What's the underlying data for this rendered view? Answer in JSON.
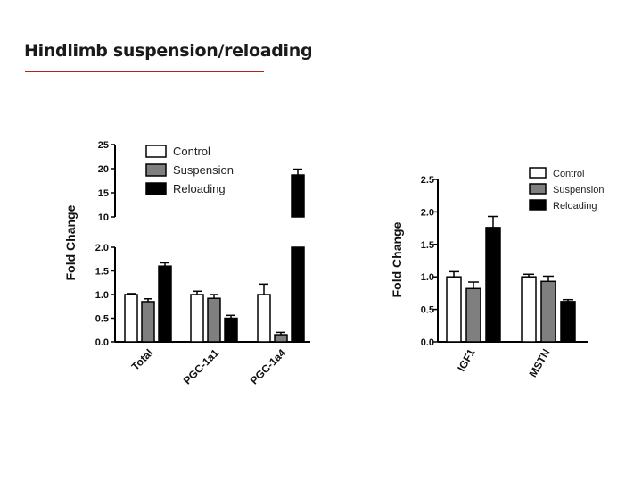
{
  "slide": {
    "title": "Hindlimb suspension/reloading"
  },
  "colors": {
    "control": "#ffffff",
    "suspension": "#7f7f7f",
    "reloading": "#000000",
    "title_underline": "#b22222"
  },
  "chart_data": [
    {
      "type": "bar",
      "ylabel": "Fold Change",
      "categories": [
        "Total",
        "PGC-1a1",
        "PGC-1a4"
      ],
      "series": [
        {
          "name": "Control",
          "values": [
            1.0,
            1.0,
            1.0
          ],
          "errors": [
            0.02,
            0.07,
            0.22
          ]
        },
        {
          "name": "Suspension",
          "values": [
            0.85,
            0.92,
            0.15
          ],
          "errors": [
            0.06,
            0.08,
            0.05
          ]
        },
        {
          "name": "Reloading",
          "values": [
            1.6,
            0.5,
            18.7
          ],
          "errors": [
            0.07,
            0.06,
            1.2
          ]
        }
      ],
      "axis_break": {
        "lower_range": [
          0,
          2
        ],
        "upper_range": [
          10,
          25
        ]
      },
      "lower_ticks": [
        "0.0",
        "0.5",
        "1.0",
        "1.5",
        "2.0"
      ],
      "upper_ticks": [
        "10",
        "15",
        "20",
        "25"
      ],
      "legend": "top-right"
    },
    {
      "type": "bar",
      "ylabel": "Fold Change",
      "categories": [
        "IGF1",
        "MSTN"
      ],
      "series": [
        {
          "name": "Control",
          "values": [
            1.0,
            1.0
          ],
          "errors": [
            0.08,
            0.04
          ]
        },
        {
          "name": "Suspension",
          "values": [
            0.82,
            0.93
          ],
          "errors": [
            0.1,
            0.08
          ]
        },
        {
          "name": "Reloading",
          "values": [
            1.76,
            0.62
          ],
          "errors": [
            0.17,
            0.03
          ]
        }
      ],
      "ylim": [
        0,
        2.5
      ],
      "ticks": [
        "0.0",
        "0.5",
        "1.0",
        "1.5",
        "2.0",
        "2.5"
      ],
      "legend": "top-right"
    }
  ]
}
